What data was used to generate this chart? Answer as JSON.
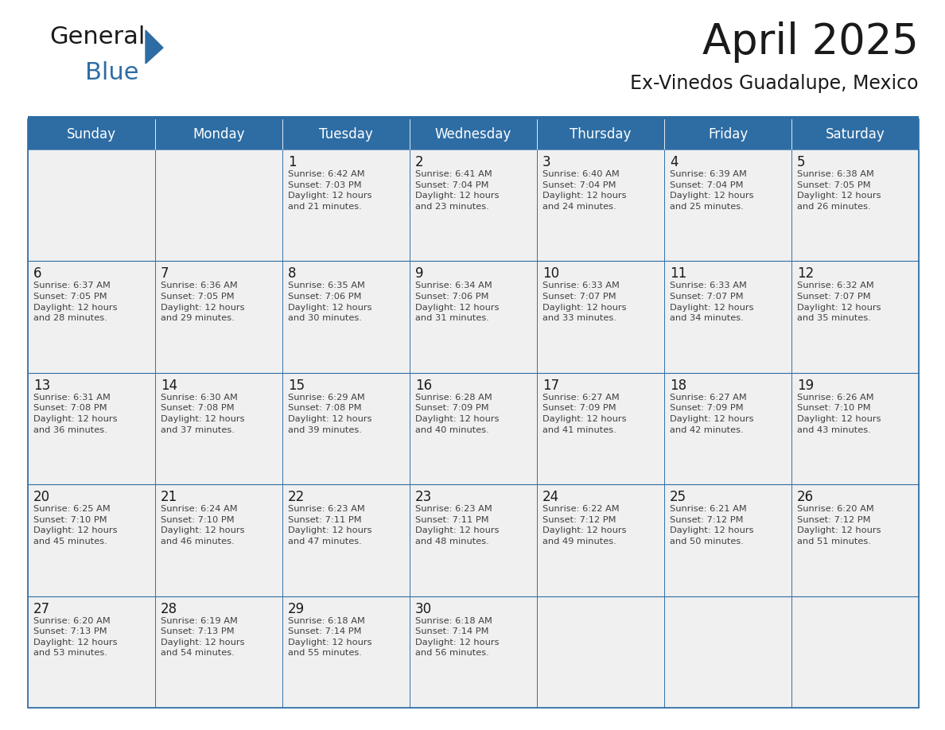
{
  "title": "April 2025",
  "subtitle": "Ex-Vinedos Guadalupe, Mexico",
  "header_bg": "#2E6DA4",
  "header_text_color": "#FFFFFF",
  "cell_bg_light": "#F0F0F0",
  "border_color": "#2E6DA4",
  "cell_text_color": "#404040",
  "days_of_week": [
    "Sunday",
    "Monday",
    "Tuesday",
    "Wednesday",
    "Thursday",
    "Friday",
    "Saturday"
  ],
  "weeks": [
    [
      {
        "day": "",
        "info": ""
      },
      {
        "day": "",
        "info": ""
      },
      {
        "day": "1",
        "info": "Sunrise: 6:42 AM\nSunset: 7:03 PM\nDaylight: 12 hours\nand 21 minutes."
      },
      {
        "day": "2",
        "info": "Sunrise: 6:41 AM\nSunset: 7:04 PM\nDaylight: 12 hours\nand 23 minutes."
      },
      {
        "day": "3",
        "info": "Sunrise: 6:40 AM\nSunset: 7:04 PM\nDaylight: 12 hours\nand 24 minutes."
      },
      {
        "day": "4",
        "info": "Sunrise: 6:39 AM\nSunset: 7:04 PM\nDaylight: 12 hours\nand 25 minutes."
      },
      {
        "day": "5",
        "info": "Sunrise: 6:38 AM\nSunset: 7:05 PM\nDaylight: 12 hours\nand 26 minutes."
      }
    ],
    [
      {
        "day": "6",
        "info": "Sunrise: 6:37 AM\nSunset: 7:05 PM\nDaylight: 12 hours\nand 28 minutes."
      },
      {
        "day": "7",
        "info": "Sunrise: 6:36 AM\nSunset: 7:05 PM\nDaylight: 12 hours\nand 29 minutes."
      },
      {
        "day": "8",
        "info": "Sunrise: 6:35 AM\nSunset: 7:06 PM\nDaylight: 12 hours\nand 30 minutes."
      },
      {
        "day": "9",
        "info": "Sunrise: 6:34 AM\nSunset: 7:06 PM\nDaylight: 12 hours\nand 31 minutes."
      },
      {
        "day": "10",
        "info": "Sunrise: 6:33 AM\nSunset: 7:07 PM\nDaylight: 12 hours\nand 33 minutes."
      },
      {
        "day": "11",
        "info": "Sunrise: 6:33 AM\nSunset: 7:07 PM\nDaylight: 12 hours\nand 34 minutes."
      },
      {
        "day": "12",
        "info": "Sunrise: 6:32 AM\nSunset: 7:07 PM\nDaylight: 12 hours\nand 35 minutes."
      }
    ],
    [
      {
        "day": "13",
        "info": "Sunrise: 6:31 AM\nSunset: 7:08 PM\nDaylight: 12 hours\nand 36 minutes."
      },
      {
        "day": "14",
        "info": "Sunrise: 6:30 AM\nSunset: 7:08 PM\nDaylight: 12 hours\nand 37 minutes."
      },
      {
        "day": "15",
        "info": "Sunrise: 6:29 AM\nSunset: 7:08 PM\nDaylight: 12 hours\nand 39 minutes."
      },
      {
        "day": "16",
        "info": "Sunrise: 6:28 AM\nSunset: 7:09 PM\nDaylight: 12 hours\nand 40 minutes."
      },
      {
        "day": "17",
        "info": "Sunrise: 6:27 AM\nSunset: 7:09 PM\nDaylight: 12 hours\nand 41 minutes."
      },
      {
        "day": "18",
        "info": "Sunrise: 6:27 AM\nSunset: 7:09 PM\nDaylight: 12 hours\nand 42 minutes."
      },
      {
        "day": "19",
        "info": "Sunrise: 6:26 AM\nSunset: 7:10 PM\nDaylight: 12 hours\nand 43 minutes."
      }
    ],
    [
      {
        "day": "20",
        "info": "Sunrise: 6:25 AM\nSunset: 7:10 PM\nDaylight: 12 hours\nand 45 minutes."
      },
      {
        "day": "21",
        "info": "Sunrise: 6:24 AM\nSunset: 7:10 PM\nDaylight: 12 hours\nand 46 minutes."
      },
      {
        "day": "22",
        "info": "Sunrise: 6:23 AM\nSunset: 7:11 PM\nDaylight: 12 hours\nand 47 minutes."
      },
      {
        "day": "23",
        "info": "Sunrise: 6:23 AM\nSunset: 7:11 PM\nDaylight: 12 hours\nand 48 minutes."
      },
      {
        "day": "24",
        "info": "Sunrise: 6:22 AM\nSunset: 7:12 PM\nDaylight: 12 hours\nand 49 minutes."
      },
      {
        "day": "25",
        "info": "Sunrise: 6:21 AM\nSunset: 7:12 PM\nDaylight: 12 hours\nand 50 minutes."
      },
      {
        "day": "26",
        "info": "Sunrise: 6:20 AM\nSunset: 7:12 PM\nDaylight: 12 hours\nand 51 minutes."
      }
    ],
    [
      {
        "day": "27",
        "info": "Sunrise: 6:20 AM\nSunset: 7:13 PM\nDaylight: 12 hours\nand 53 minutes."
      },
      {
        "day": "28",
        "info": "Sunrise: 6:19 AM\nSunset: 7:13 PM\nDaylight: 12 hours\nand 54 minutes."
      },
      {
        "day": "29",
        "info": "Sunrise: 6:18 AM\nSunset: 7:14 PM\nDaylight: 12 hours\nand 55 minutes."
      },
      {
        "day": "30",
        "info": "Sunrise: 6:18 AM\nSunset: 7:14 PM\nDaylight: 12 hours\nand 56 minutes."
      },
      {
        "day": "",
        "info": ""
      },
      {
        "day": "",
        "info": ""
      },
      {
        "day": "",
        "info": ""
      }
    ]
  ],
  "logo_general_color": "#1a1a1a",
  "logo_blue_color": "#2E6DA4",
  "title_fontsize": 38,
  "subtitle_fontsize": 17,
  "header_fontsize": 12,
  "day_num_fontsize": 12,
  "cell_text_fontsize": 8.2
}
